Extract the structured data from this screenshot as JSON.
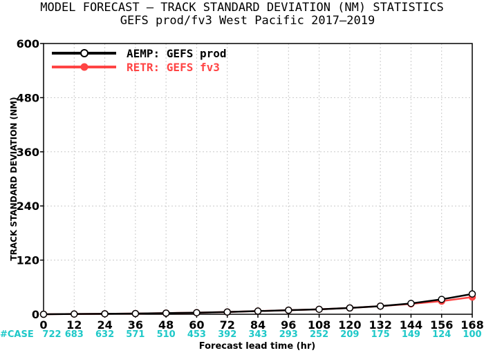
{
  "chart_data": {
    "type": "line",
    "title": "MODEL FORECAST – TRACK STANDARD DEVIATION (NM) STATISTICS",
    "subtitle": "GEFS prod/fv3 West Pacific 2017–2019",
    "xlabel": "Forecast lead time (hr)",
    "ylabel": "TRACK STANDARD DEVIATION (NM)",
    "x": [
      0,
      12,
      24,
      36,
      48,
      60,
      72,
      84,
      96,
      108,
      120,
      132,
      144,
      156,
      168
    ],
    "xticks": [
      "0",
      "12",
      "24",
      "36",
      "48",
      "60",
      "72",
      "84",
      "96",
      "108",
      "120",
      "132",
      "144",
      "156",
      "168"
    ],
    "xlim": [
      0,
      168
    ],
    "ylim": [
      0,
      600
    ],
    "yticks": [
      "0",
      "120",
      "240",
      "360",
      "480",
      "600"
    ],
    "yticks_values": [
      0,
      120,
      240,
      360,
      480,
      600
    ],
    "grid": true,
    "legend_position": "top-left",
    "series": [
      {
        "name": "AEMP: GEFS prod",
        "color": "#000000",
        "values": [
          0,
          0.5,
          1,
          1.5,
          2.5,
          3.5,
          5,
          7,
          9,
          11,
          14,
          18,
          24,
          33,
          45
        ]
      },
      {
        "name": "RETR: GEFS fv3",
        "color": "#ff4444",
        "values": [
          0,
          0.5,
          1,
          1.5,
          2.5,
          3.5,
          5,
          7,
          9,
          11,
          14,
          18,
          23,
          29,
          38
        ]
      }
    ],
    "case_label": "#CASE",
    "case_counts": [
      "722",
      "683",
      "632",
      "571",
      "510",
      "453",
      "392",
      "343",
      "293",
      "252",
      "209",
      "175",
      "149",
      "124",
      "100"
    ],
    "case_color": "#1ec8c8"
  }
}
